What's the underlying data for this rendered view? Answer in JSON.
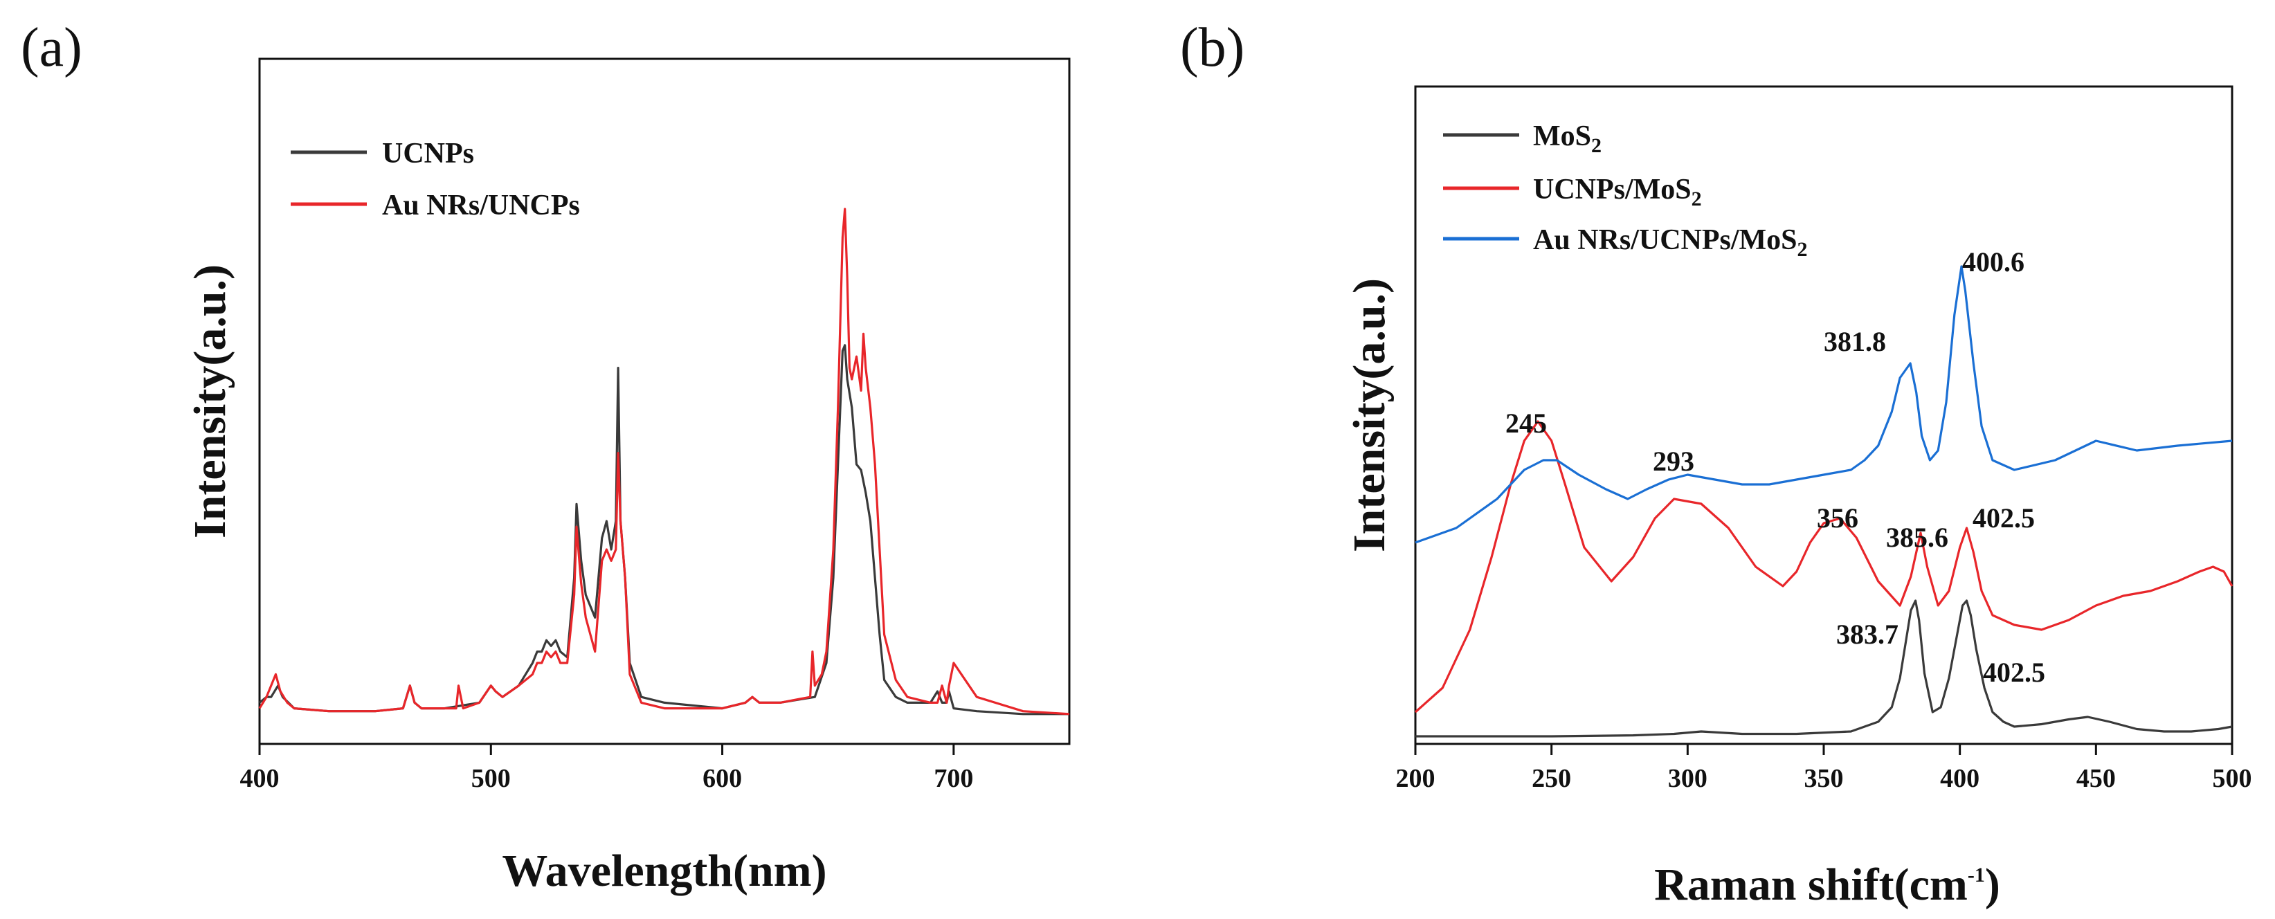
{
  "chart_data": [
    {
      "panel_label": "(a)",
      "type": "line",
      "xlabel": "Wavelength(nm)",
      "ylabel": "Intensity(a.u.)",
      "xlim": [
        400,
        750
      ],
      "ylim": [
        0,
        1
      ],
      "xticks": [
        400,
        500,
        600,
        700
      ],
      "legend_position": "top-left",
      "series": [
        {
          "name": "UCNPs",
          "color": "#3a3a3a",
          "x": [
            400,
            403,
            405,
            408,
            410,
            415,
            430,
            450,
            462,
            465,
            467,
            470,
            480,
            495,
            500,
            502,
            505,
            512,
            518,
            520,
            522,
            524,
            526,
            528,
            530,
            533,
            536,
            537,
            539,
            541,
            543,
            545,
            548,
            550,
            552,
            554,
            555,
            556,
            558,
            560,
            565,
            575,
            600,
            610,
            613,
            616,
            625,
            640,
            645,
            648,
            650,
            652,
            653,
            654,
            656,
            658,
            660,
            662,
            664,
            666,
            668,
            670,
            675,
            680,
            690,
            693,
            695,
            697,
            698,
            700,
            710,
            730,
            750
          ],
          "y": [
            0.03,
            0.04,
            0.04,
            0.06,
            0.04,
            0.02,
            0.015,
            0.015,
            0.02,
            0.06,
            0.03,
            0.02,
            0.02,
            0.03,
            0.06,
            0.05,
            0.04,
            0.06,
            0.1,
            0.12,
            0.12,
            0.14,
            0.13,
            0.14,
            0.12,
            0.11,
            0.25,
            0.38,
            0.28,
            0.22,
            0.2,
            0.18,
            0.32,
            0.35,
            0.3,
            0.35,
            0.62,
            0.35,
            0.25,
            0.1,
            0.04,
            0.03,
            0.02,
            0.03,
            0.04,
            0.03,
            0.03,
            0.04,
            0.1,
            0.25,
            0.45,
            0.65,
            0.66,
            0.6,
            0.55,
            0.45,
            0.44,
            0.4,
            0.35,
            0.25,
            0.15,
            0.07,
            0.04,
            0.03,
            0.03,
            0.05,
            0.03,
            0.03,
            0.05,
            0.02,
            0.015,
            0.01,
            0.01
          ]
        },
        {
          "name": "Au NRs/UNCPs",
          "color": "#e8262a",
          "x": [
            400,
            403,
            405,
            407,
            409,
            412,
            415,
            430,
            450,
            462,
            465,
            467,
            470,
            485,
            486,
            488,
            495,
            500,
            502,
            505,
            512,
            518,
            520,
            522,
            524,
            526,
            528,
            530,
            533,
            536,
            537,
            539,
            541,
            543,
            545,
            548,
            550,
            552,
            554,
            555,
            556,
            558,
            560,
            565,
            575,
            600,
            610,
            613,
            616,
            625,
            638,
            639,
            640,
            643,
            645,
            648,
            650,
            652,
            653,
            654,
            655,
            656,
            658,
            660,
            661,
            662,
            664,
            666,
            668,
            670,
            675,
            680,
            690,
            693,
            695,
            697,
            698,
            700,
            710,
            730,
            750
          ],
          "y": [
            0.02,
            0.04,
            0.06,
            0.08,
            0.05,
            0.03,
            0.02,
            0.015,
            0.015,
            0.02,
            0.06,
            0.03,
            0.02,
            0.02,
            0.06,
            0.02,
            0.03,
            0.06,
            0.05,
            0.04,
            0.06,
            0.08,
            0.1,
            0.1,
            0.12,
            0.11,
            0.12,
            0.1,
            0.1,
            0.22,
            0.34,
            0.24,
            0.18,
            0.15,
            0.12,
            0.28,
            0.3,
            0.28,
            0.3,
            0.47,
            0.35,
            0.25,
            0.08,
            0.03,
            0.02,
            0.02,
            0.03,
            0.04,
            0.03,
            0.03,
            0.04,
            0.12,
            0.06,
            0.08,
            0.12,
            0.3,
            0.55,
            0.85,
            0.9,
            0.78,
            0.62,
            0.6,
            0.64,
            0.58,
            0.68,
            0.62,
            0.55,
            0.45,
            0.3,
            0.15,
            0.07,
            0.04,
            0.03,
            0.03,
            0.06,
            0.03,
            0.06,
            0.1,
            0.04,
            0.015,
            0.01
          ]
        }
      ]
    },
    {
      "panel_label": "(b)",
      "type": "line",
      "xlabel": "Raman shift(cm",
      "xlabel_sup": "-1",
      "xlabel_end": ")",
      "ylabel": "Intensity(a.u.)",
      "xlim": [
        200,
        500
      ],
      "ylim": [
        0,
        1
      ],
      "xticks": [
        200,
        250,
        300,
        350,
        400,
        450,
        500
      ],
      "legend_position": "top-left",
      "series": [
        {
          "name_main": "MoS",
          "name_sub": "2",
          "color": "#3a3a3a",
          "x": [
            200,
            220,
            250,
            280,
            295,
            305,
            320,
            340,
            360,
            370,
            375,
            378,
            380,
            382,
            383.7,
            385,
            387,
            390,
            393,
            396,
            399,
            401,
            402.5,
            404,
            406,
            409,
            412,
            416,
            420,
            430,
            440,
            447,
            455,
            465,
            475,
            485,
            495,
            500
          ],
          "y": [
            0.03,
            0.03,
            0.03,
            0.032,
            0.035,
            0.04,
            0.035,
            0.035,
            0.04,
            0.06,
            0.09,
            0.15,
            0.22,
            0.29,
            0.31,
            0.27,
            0.16,
            0.08,
            0.09,
            0.15,
            0.24,
            0.3,
            0.31,
            0.28,
            0.21,
            0.13,
            0.08,
            0.06,
            0.05,
            0.055,
            0.065,
            0.07,
            0.06,
            0.045,
            0.04,
            0.04,
            0.045,
            0.05
          ]
        },
        {
          "name_main": "UCNPs/MoS",
          "name_sub": "2",
          "color": "#e8262a",
          "x": [
            200,
            210,
            220,
            228,
            235,
            240,
            245,
            250,
            255,
            262,
            272,
            280,
            288,
            295,
            305,
            315,
            325,
            335,
            340,
            345,
            350,
            356,
            362,
            370,
            378,
            382,
            385.6,
            388,
            392,
            396,
            400,
            402.5,
            405,
            408,
            412,
            420,
            430,
            440,
            450,
            460,
            470,
            480,
            488,
            493,
            497,
            500
          ],
          "y": [
            0.08,
            0.13,
            0.25,
            0.4,
            0.55,
            0.64,
            0.68,
            0.64,
            0.55,
            0.42,
            0.35,
            0.4,
            0.48,
            0.52,
            0.51,
            0.46,
            0.38,
            0.34,
            0.37,
            0.43,
            0.47,
            0.48,
            0.44,
            0.35,
            0.3,
            0.36,
            0.45,
            0.38,
            0.3,
            0.33,
            0.42,
            0.46,
            0.41,
            0.33,
            0.28,
            0.26,
            0.25,
            0.27,
            0.3,
            0.32,
            0.33,
            0.35,
            0.37,
            0.38,
            0.37,
            0.34
          ]
        },
        {
          "name_main": "Au NRs/UCNPs/MoS",
          "name_sub": "2",
          "color": "#1a6fd4",
          "x": [
            200,
            215,
            230,
            240,
            247,
            252,
            260,
            270,
            278,
            285,
            293,
            300,
            310,
            320,
            330,
            340,
            350,
            360,
            365,
            370,
            375,
            378,
            381.8,
            384,
            386,
            389,
            392,
            395,
            398,
            400.6,
            402,
            405,
            408,
            412,
            420,
            435,
            450,
            465,
            480,
            500
          ],
          "y": [
            0.43,
            0.46,
            0.52,
            0.58,
            0.6,
            0.6,
            0.57,
            0.54,
            0.52,
            0.54,
            0.56,
            0.57,
            0.56,
            0.55,
            0.55,
            0.56,
            0.57,
            0.58,
            0.6,
            0.63,
            0.7,
            0.77,
            0.8,
            0.74,
            0.65,
            0.6,
            0.62,
            0.72,
            0.9,
            1.0,
            0.95,
            0.8,
            0.67,
            0.6,
            0.58,
            0.6,
            0.64,
            0.62,
            0.63,
            0.64
          ]
        }
      ],
      "annotations": [
        {
          "text": "245"
        },
        {
          "text": "293"
        },
        {
          "text": "356"
        },
        {
          "text": "385.6"
        },
        {
          "text": "402.5"
        },
        {
          "text": "381.8"
        },
        {
          "text": "400.6"
        },
        {
          "text": "383.7"
        },
        {
          "text": "402.5"
        }
      ]
    }
  ]
}
